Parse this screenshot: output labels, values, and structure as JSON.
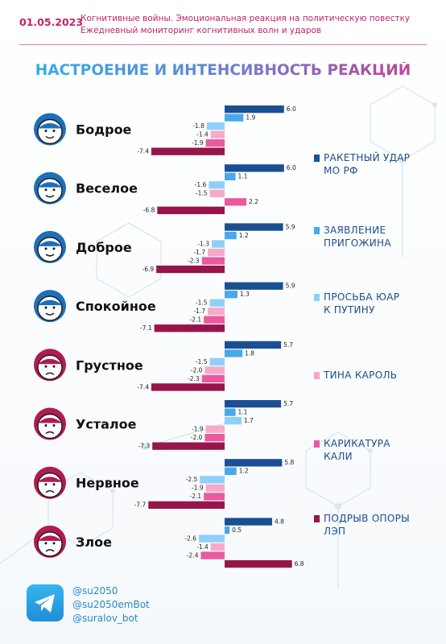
{
  "header": {
    "date": "01.05.2023",
    "line1": "Когнитивные войны. Эмоциональная реакция на политическую повестку",
    "line2": "Ежедневный мониторинг когнитивных волн и ударов"
  },
  "colors": {
    "accent": "#c0236b",
    "positive_mood_icon": "#1e6fb9",
    "negative_mood_icon": "#b01b50"
  },
  "chart_data": {
    "type": "bar",
    "title": "НАСТРОЕНИЕ И ИНТЕНСИВНОСТЬ РЕАКЦИЙ",
    "orientation": "horizontal",
    "categories": [
      "Бодрое",
      "Веселое",
      "Доброе",
      "Спокойное",
      "Грустное",
      "Усталое",
      "Нервное",
      "Злое"
    ],
    "category_icons": [
      "smiling-face-icon",
      "laughing-face-icon",
      "kind-face-icon",
      "calm-face-icon",
      "sad-face-icon",
      "tired-face-icon",
      "nervous-face-icon",
      "angry-face-icon"
    ],
    "legend_placement": "right",
    "series": [
      {
        "name": "РАКЕТНЫЙ УДАР МО РФ",
        "color": "#1b4f93",
        "values": [
          6.0,
          6.0,
          5.9,
          5.9,
          5.7,
          5.7,
          5.8,
          4.8
        ]
      },
      {
        "name": "ЗАЯВЛЕНИЕ ПРИГОЖИНА",
        "color": "#49a8ec",
        "values": [
          1.9,
          1.1,
          1.2,
          1.3,
          1.8,
          1.1,
          1.2,
          0.5
        ]
      },
      {
        "name": "ПРОСЬБА ЮАР К ПУТИНУ",
        "color": "#8fd0f8",
        "values": [
          -1.8,
          -1.6,
          -1.3,
          -1.5,
          -1.5,
          1.7,
          -2.5,
          -2.6
        ]
      },
      {
        "name": "ТИНА КАРОЛЬ",
        "color": "#f7a9cc",
        "values": [
          -1.4,
          -1.5,
          -1.7,
          -1.7,
          -2.0,
          -1.9,
          -1.9,
          -1.4
        ]
      },
      {
        "name": "КАРИКАТУРА КАЛИ",
        "color": "#ea5a9e",
        "values": [
          -1.9,
          2.2,
          -2.3,
          -2.1,
          -2.3,
          -2.0,
          -2.1,
          -2.4
        ]
      },
      {
        "name": "ПОДРЫВ ОПОРЫ ЛЭП",
        "color": "#96154b",
        "values": [
          -7.4,
          -6.8,
          -6.9,
          -7.1,
          -7.4,
          -7.3,
          -7.7,
          6.8
        ]
      }
    ],
    "value_labels": [
      [
        "6.0",
        "1.9",
        "-1.8",
        "-1.4",
        "-1.9",
        "-7.4"
      ],
      [
        "6.0",
        "1.1",
        "-1.6",
        "-1.5",
        "2.2",
        "-6.8"
      ],
      [
        "5.9",
        "1.2",
        "-1.3",
        "-1.7",
        "-2.3",
        "-6.9"
      ],
      [
        "5.9",
        "1.3",
        "-1.5",
        "-1.7",
        "-2.1",
        "-7.1"
      ],
      [
        "5.7",
        "1.8",
        "-1.5",
        "-2.0",
        "-2.3",
        "-7.4"
      ],
      [
        "5.7",
        "1.1",
        "1.7",
        "-1.9",
        "-2.0",
        "-7.3"
      ],
      [
        "5.8",
        "1.2",
        "-2.5",
        "-1.9",
        "-2.1",
        "-7.7"
      ],
      [
        "4.8",
        "0.5",
        "-2.6",
        "-1.4",
        "-2.4",
        "6.8"
      ]
    ],
    "legend_lines": [
      [
        "РАКЕТНЫЙ УДАР",
        "МО РФ"
      ],
      [
        "ЗАЯВЛЕНИЕ",
        "ПРИГОЖИНА"
      ],
      [
        "ПРОСЬБА ЮАР",
        "К ПУТИНУ"
      ],
      [
        "ТИНА КАРОЛЬ"
      ],
      [
        "КАРИКАТУРА",
        "КАЛИ"
      ],
      [
        "ПОДРЫВ ОПОРЫ",
        "ЛЭП"
      ]
    ]
  },
  "social": {
    "handles": [
      "@su2050",
      "@su2050emBot",
      "@suralov_bot"
    ],
    "icon": "telegram-icon"
  }
}
